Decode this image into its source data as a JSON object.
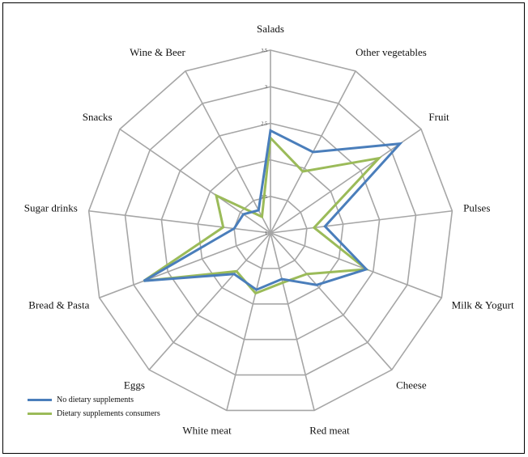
{
  "chart_data": {
    "type": "radar",
    "title": "",
    "categories": [
      "Salads",
      "Other vegetables",
      "Fruit",
      "Pulses",
      "Milk & Yogurt",
      "Cheese",
      "Red meat",
      "White meat",
      "Eggs",
      "Bread & Pasta",
      "Sugar drinks",
      "Snacks",
      "Wine & Beer"
    ],
    "rlim": [
      1,
      3.5
    ],
    "ticks": [
      "1",
      "1.5",
      "2",
      "2.5",
      "3",
      "3.5"
    ],
    "tick_values": [
      1,
      1.5,
      2,
      2.5,
      3,
      3.5
    ],
    "grid": true,
    "legend_position": "bottom-left",
    "series": [
      {
        "name": "No dietary supplements",
        "color": "#4a7ebb",
        "values": [
          2.4,
          2.25,
          3.15,
          1.75,
          2.4,
          1.95,
          1.65,
          1.8,
          1.75,
          2.85,
          1.5,
          1.45,
          1.35
        ]
      },
      {
        "name": "Dietary supplements consumers",
        "color": "#9bbb59",
        "values": [
          2.3,
          1.95,
          2.8,
          1.6,
          2.4,
          1.75,
          1.7,
          1.85,
          1.7,
          2.85,
          1.65,
          1.9,
          1.25
        ]
      }
    ]
  }
}
